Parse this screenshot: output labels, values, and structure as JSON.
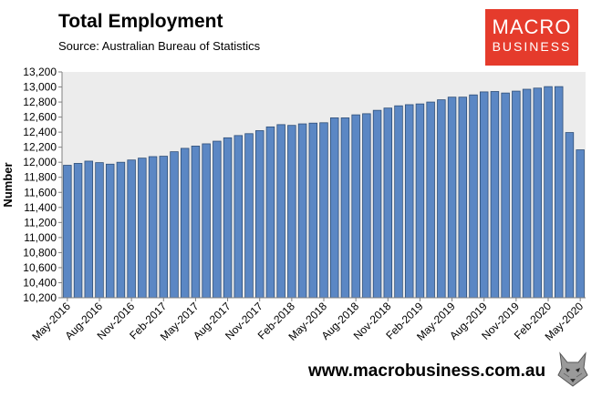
{
  "header": {
    "title": "Total Employment",
    "source": "Source: Australian Bureau of Statistics"
  },
  "logo": {
    "line1": "MACRO",
    "line2": "BUSINESS",
    "color": "#e53b2c"
  },
  "footer": {
    "website": "www.macrobusiness.com.au",
    "mascot_icon": "wolf-icon"
  },
  "colors": {
    "bar_fill": "#5b87c4",
    "bar_edge": "#2f4f78",
    "plot_bg": "#ececec"
  },
  "chart_data": {
    "type": "bar",
    "ylabel": "Number",
    "ylim": [
      10200,
      13200
    ],
    "ytick_step": 200,
    "grid": false,
    "legend": "none",
    "categories": [
      "May-2016",
      "Jun-2016",
      "Jul-2016",
      "Aug-2016",
      "Sep-2016",
      "Oct-2016",
      "Nov-2016",
      "Dec-2016",
      "Jan-2017",
      "Feb-2017",
      "Mar-2017",
      "Apr-2017",
      "May-2017",
      "Jun-2017",
      "Jul-2017",
      "Aug-2017",
      "Sep-2017",
      "Oct-2017",
      "Nov-2017",
      "Dec-2017",
      "Jan-2018",
      "Feb-2018",
      "Mar-2018",
      "Apr-2018",
      "May-2018",
      "Jun-2018",
      "Jul-2018",
      "Aug-2018",
      "Sep-2018",
      "Oct-2018",
      "Nov-2018",
      "Dec-2018",
      "Jan-2019",
      "Feb-2019",
      "Mar-2019",
      "Apr-2019",
      "May-2019",
      "Jun-2019",
      "Jul-2019",
      "Aug-2019",
      "Sep-2019",
      "Oct-2019",
      "Nov-2019",
      "Dec-2019",
      "Jan-2020",
      "Feb-2020",
      "Mar-2020",
      "Apr-2020",
      "May-2020"
    ],
    "tick_labels": [
      "May-2016",
      "Aug-2016",
      "Nov-2016",
      "Feb-2017",
      "May-2017",
      "Aug-2017",
      "Nov-2017",
      "Feb-2018",
      "May-2018",
      "Aug-2018",
      "Nov-2018",
      "Feb-2019",
      "May-2019",
      "Aug-2019",
      "Nov-2019",
      "Feb-2020",
      "May-2020"
    ],
    "values": [
      11960,
      11985,
      12015,
      11995,
      11975,
      12000,
      12030,
      12055,
      12075,
      12080,
      12140,
      12185,
      12215,
      12245,
      12280,
      12325,
      12355,
      12380,
      12420,
      12470,
      12500,
      12490,
      12510,
      12520,
      12525,
      12590,
      12590,
      12630,
      12645,
      12690,
      12720,
      12750,
      12765,
      12775,
      12800,
      12830,
      12865,
      12865,
      12895,
      12935,
      12940,
      12920,
      12945,
      12970,
      12985,
      13005,
      13005,
      12395,
      12165
    ]
  }
}
